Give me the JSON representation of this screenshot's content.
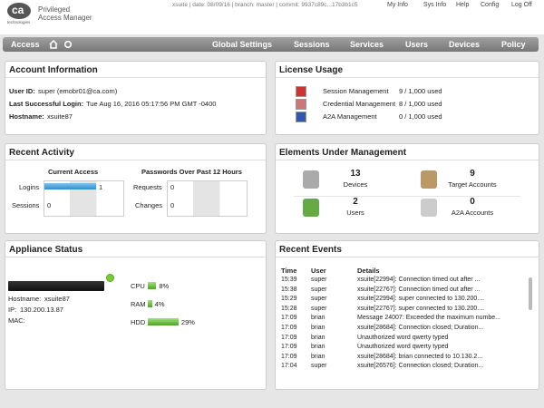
{
  "header": {
    "logo": "ca",
    "logo_sub": "technologies",
    "product_line1": "Privileged",
    "product_line2": "Access Manager",
    "status": "xsuite | date: 08/09/16 | branch: master | commit: 9937c89c...17b3b1c5",
    "links": [
      "My Info",
      "Sys Info",
      "Help",
      "Config",
      "Log Off"
    ]
  },
  "nav": {
    "left": "Access",
    "items": [
      "Global Settings",
      "Sessions",
      "Services",
      "Users",
      "Devices",
      "Policy"
    ]
  },
  "account": {
    "title": "Account Information",
    "fields": [
      {
        "label": "User ID:",
        "value": "super (emobr01@ca.com)"
      },
      {
        "label": "Last Successful Login:",
        "value": "Tue Aug 16, 2016 05:17:56 PM GMT -0400"
      },
      {
        "label": "Hostname:",
        "value": "xsuite87"
      }
    ]
  },
  "license": {
    "title": "License Usage",
    "rows": [
      {
        "name": "Session Management",
        "usage": "9 / 1,000 used"
      },
      {
        "name": "Credential Management",
        "usage": "8 / 1,000 used"
      },
      {
        "name": "A2A Management",
        "usage": "0 / 1,000 used"
      }
    ]
  },
  "activity": {
    "title": "Recent Activity",
    "current": {
      "title": "Current Access",
      "rows": [
        {
          "label": "Logins",
          "value": 1
        },
        {
          "label": "Sessions",
          "value": 0
        }
      ]
    },
    "passwords": {
      "title": "Passwords Over Past 12 Hours",
      "rows": [
        {
          "label": "Requests",
          "value": 0
        },
        {
          "label": "Changes",
          "value": 0
        }
      ]
    }
  },
  "elements": {
    "title": "Elements Under Management",
    "items": [
      {
        "count": 13,
        "label": "Devices"
      },
      {
        "count": 9,
        "label": "Target Accounts"
      },
      {
        "count": 2,
        "label": "Users"
      },
      {
        "count": 0,
        "label": "A2A Accounts"
      }
    ]
  },
  "appliance": {
    "title": "Appliance Status",
    "info": [
      {
        "label": "Hostname:",
        "value": "xsuite87"
      },
      {
        "label": "IP:",
        "value": "130.200.13.87"
      },
      {
        "label": "MAC:"
      }
    ],
    "resources": [
      {
        "label": "CPU",
        "value": 8,
        "value_label": "8%"
      },
      {
        "label": "RAM",
        "value": 4,
        "value_label": "4%"
      },
      {
        "label": "HDD",
        "value": 29,
        "value_label": "29%"
      }
    ]
  },
  "events": {
    "title": "Recent Events",
    "columns": [
      "Time",
      "User",
      "Details"
    ],
    "rows": [
      [
        "15:39",
        "super",
        "xsuite[22994]: Connection timed out after ..."
      ],
      [
        "15:38",
        "super",
        "xsuite[22767]: Connection timed out after ..."
      ],
      [
        "15:29",
        "super",
        "xsuite[22994]: super connected to 130.200...."
      ],
      [
        "15:28",
        "super",
        "xsuite[22767]: super connected to 130.200...."
      ],
      [
        "17:09",
        "brian",
        "Message 24007: Exceeded the maximum numbe..."
      ],
      [
        "17:09",
        "brian",
        "xsuite[28684]: Connection closed; Duration..."
      ],
      [
        "17:09",
        "brian",
        "Unauthorized word qwerty typed"
      ],
      [
        "17:09",
        "brian",
        "Unauthorized word qwerty typed"
      ],
      [
        "17:09",
        "brian",
        "xsuite[28684]: brian connected to 10.130.2..."
      ],
      [
        "17:04",
        "super",
        "xsuite[26576]: Connection closed; Duration..."
      ]
    ]
  }
}
